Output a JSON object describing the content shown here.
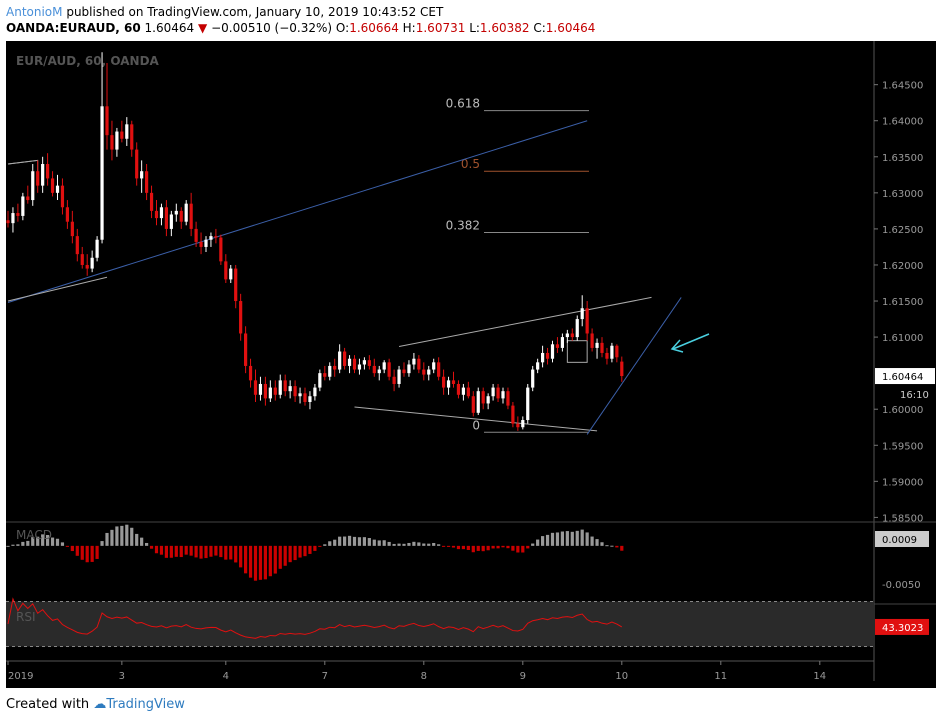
{
  "header": {
    "author": "AntonioM",
    "published_text": "published on TradingView.com, January 10, 2019 10:43:52 CET",
    "symbol": "OANDA:EURAUD, 60",
    "last": "1.60464",
    "change": "−0.00510 (−0.32%)",
    "o_label": "O:",
    "o": "1.60664",
    "h_label": "H:",
    "h": "1.60731",
    "l_label": "L:",
    "l": "1.60382",
    "c_label": "C:",
    "c": "1.60464"
  },
  "watermark": "EUR/AUD, 60, OANDA",
  "footer": {
    "prefix": "Created with",
    "brand": "TradingView"
  },
  "colors": {
    "background": "#000000",
    "bull": "#ffffff",
    "bear": "#e01010",
    "trendline_blue": "#3b5fa8",
    "fib_line": "#888888",
    "fib_05": "#a0522d",
    "macd_pos": "#999999",
    "macd_neg": "#cc0000",
    "rsi_line": "#e01010",
    "arrow": "#4ad0e0",
    "axis_text": "#9a9a9a"
  },
  "chart_data": {
    "type": "candlestick",
    "ylim": [
      1.5845,
      1.6505
    ],
    "y_ticks": [
      "1.64500",
      "1.64000",
      "1.63500",
      "1.63000",
      "1.62500",
      "1.62000",
      "1.61500",
      "1.61000",
      "1.60000",
      "1.59500",
      "1.59000",
      "1.58500"
    ],
    "price_label": "1.60464",
    "countdown_label": "16:10",
    "x_ticks": [
      "2019",
      "3",
      "4",
      "7",
      "8",
      "9",
      "10",
      "11",
      "14"
    ],
    "fib_levels": [
      {
        "label": "0.618",
        "price": 1.6414
      },
      {
        "label": "0.5",
        "price": 1.633
      },
      {
        "label": "0.382",
        "price": 1.6245
      },
      {
        "label": "0",
        "price": 1.5968
      }
    ],
    "candles": [
      [
        1.6262,
        1.6275,
        1.6252,
        1.6258
      ],
      [
        1.6258,
        1.628,
        1.6245,
        1.6272
      ],
      [
        1.6272,
        1.6285,
        1.626,
        1.6268
      ],
      [
        1.6268,
        1.63,
        1.6262,
        1.6295
      ],
      [
        1.6295,
        1.631,
        1.6285,
        1.629
      ],
      [
        1.629,
        1.634,
        1.6282,
        1.633
      ],
      [
        1.633,
        1.6345,
        1.63,
        1.631
      ],
      [
        1.631,
        1.635,
        1.63,
        1.634
      ],
      [
        1.634,
        1.6355,
        1.631,
        1.632
      ],
      [
        1.632,
        1.633,
        1.6295,
        1.63
      ],
      [
        1.63,
        1.6325,
        1.629,
        1.631
      ],
      [
        1.631,
        1.632,
        1.627,
        1.628
      ],
      [
        1.628,
        1.629,
        1.625,
        1.626
      ],
      [
        1.626,
        1.6275,
        1.623,
        1.624
      ],
      [
        1.624,
        1.625,
        1.6205,
        1.6215
      ],
      [
        1.6215,
        1.6225,
        1.6195,
        1.62
      ],
      [
        1.62,
        1.6215,
        1.6185,
        1.6195
      ],
      [
        1.6195,
        1.622,
        1.619,
        1.621
      ],
      [
        1.621,
        1.624,
        1.6205,
        1.6235
      ],
      [
        1.6235,
        1.6495,
        1.623,
        1.642
      ],
      [
        1.642,
        1.648,
        1.636,
        1.638
      ],
      [
        1.638,
        1.64,
        1.6345,
        1.636
      ],
      [
        1.636,
        1.639,
        1.635,
        1.6385
      ],
      [
        1.6385,
        1.64,
        1.637,
        1.6375
      ],
      [
        1.6375,
        1.6405,
        1.6365,
        1.6395
      ],
      [
        1.6395,
        1.64,
        1.635,
        1.636
      ],
      [
        1.636,
        1.637,
        1.631,
        1.632
      ],
      [
        1.632,
        1.6345,
        1.63,
        1.633
      ],
      [
        1.633,
        1.634,
        1.629,
        1.63
      ],
      [
        1.63,
        1.631,
        1.6265,
        1.6275
      ],
      [
        1.6275,
        1.629,
        1.6255,
        1.6265
      ],
      [
        1.6265,
        1.6285,
        1.6255,
        1.628
      ],
      [
        1.628,
        1.629,
        1.624,
        1.625
      ],
      [
        1.625,
        1.6275,
        1.624,
        1.627
      ],
      [
        1.627,
        1.6285,
        1.626,
        1.6275
      ],
      [
        1.6275,
        1.628,
        1.625,
        1.626
      ],
      [
        1.626,
        1.629,
        1.6255,
        1.6285
      ],
      [
        1.6285,
        1.63,
        1.624,
        1.625
      ],
      [
        1.625,
        1.626,
        1.6225,
        1.6232
      ],
      [
        1.6232,
        1.6245,
        1.6215,
        1.6225
      ],
      [
        1.6225,
        1.624,
        1.6218,
        1.6235
      ],
      [
        1.6235,
        1.6245,
        1.6225,
        1.624
      ],
      [
        1.624,
        1.625,
        1.623,
        1.6238
      ],
      [
        1.6238,
        1.6242,
        1.62,
        1.6205
      ],
      [
        1.6205,
        1.6215,
        1.6175,
        1.618
      ],
      [
        1.618,
        1.62,
        1.6175,
        1.6195
      ],
      [
        1.6195,
        1.62,
        1.614,
        1.615
      ],
      [
        1.615,
        1.616,
        1.6095,
        1.6105
      ],
      [
        1.6105,
        1.6115,
        1.605,
        1.606
      ],
      [
        1.606,
        1.607,
        1.603,
        1.604
      ],
      [
        1.604,
        1.6055,
        1.601,
        1.602
      ],
      [
        1.602,
        1.6045,
        1.6012,
        1.6035
      ],
      [
        1.6035,
        1.6045,
        1.6005,
        1.6015
      ],
      [
        1.6015,
        1.604,
        1.601,
        1.603
      ],
      [
        1.603,
        1.604,
        1.6012,
        1.602
      ],
      [
        1.602,
        1.6048,
        1.6015,
        1.604
      ],
      [
        1.604,
        1.6048,
        1.6018,
        1.6025
      ],
      [
        1.6025,
        1.604,
        1.6015,
        1.6032
      ],
      [
        1.6032,
        1.604,
        1.601,
        1.6018
      ],
      [
        1.6018,
        1.603,
        1.6008,
        1.6022
      ],
      [
        1.6022,
        1.603,
        1.6005,
        1.601
      ],
      [
        1.601,
        1.6025,
        1.6,
        1.6018
      ],
      [
        1.6018,
        1.6035,
        1.6012,
        1.603
      ],
      [
        1.603,
        1.6055,
        1.6025,
        1.605
      ],
      [
        1.605,
        1.606,
        1.604,
        1.6045
      ],
      [
        1.6045,
        1.6065,
        1.604,
        1.606
      ],
      [
        1.606,
        1.607,
        1.6045,
        1.6055
      ],
      [
        1.6055,
        1.609,
        1.605,
        1.608
      ],
      [
        1.608,
        1.6085,
        1.6055,
        1.606
      ],
      [
        1.606,
        1.6075,
        1.605,
        1.607
      ],
      [
        1.607,
        1.6075,
        1.605,
        1.6055
      ],
      [
        1.6055,
        1.607,
        1.6048,
        1.6062
      ],
      [
        1.6062,
        1.6072,
        1.6055,
        1.6068
      ],
      [
        1.6068,
        1.6075,
        1.6055,
        1.606
      ],
      [
        1.606,
        1.607,
        1.6045,
        1.605
      ],
      [
        1.605,
        1.606,
        1.604,
        1.6055
      ],
      [
        1.6055,
        1.6068,
        1.605,
        1.6065
      ],
      [
        1.6065,
        1.607,
        1.604,
        1.6045
      ],
      [
        1.6045,
        1.6055,
        1.6025,
        1.6035
      ],
      [
        1.6035,
        1.606,
        1.603,
        1.6055
      ],
      [
        1.6055,
        1.6065,
        1.6045,
        1.605
      ],
      [
        1.605,
        1.6068,
        1.6045,
        1.6062
      ],
      [
        1.6062,
        1.6078,
        1.6055,
        1.607
      ],
      [
        1.607,
        1.6075,
        1.605,
        1.6055
      ],
      [
        1.6055,
        1.6065,
        1.604,
        1.6048
      ],
      [
        1.6048,
        1.606,
        1.604,
        1.6055
      ],
      [
        1.6055,
        1.607,
        1.605,
        1.6065
      ],
      [
        1.6065,
        1.6072,
        1.604,
        1.6045
      ],
      [
        1.6045,
        1.6055,
        1.602,
        1.603
      ],
      [
        1.603,
        1.6045,
        1.602,
        1.604
      ],
      [
        1.604,
        1.6052,
        1.603,
        1.6035
      ],
      [
        1.6035,
        1.604,
        1.6015,
        1.602
      ],
      [
        1.602,
        1.6035,
        1.6012,
        1.603
      ],
      [
        1.603,
        1.6038,
        1.6015,
        1.6018
      ],
      [
        1.6018,
        1.6025,
        1.599,
        1.5995
      ],
      [
        1.5995,
        1.603,
        1.5992,
        1.6025
      ],
      [
        1.6025,
        1.603,
        1.6,
        1.6008
      ],
      [
        1.6008,
        1.6022,
        1.6,
        1.6018
      ],
      [
        1.6018,
        1.6035,
        1.6012,
        1.603
      ],
      [
        1.603,
        1.6035,
        1.601,
        1.6015
      ],
      [
        1.6015,
        1.603,
        1.6008,
        1.6025
      ],
      [
        1.6025,
        1.603,
        1.6,
        1.6005
      ],
      [
        1.6005,
        1.601,
        1.5975,
        1.598
      ],
      [
        1.598,
        1.599,
        1.597,
        1.5975
      ],
      [
        1.5975,
        1.599,
        1.5972,
        1.5985
      ],
      [
        1.5985,
        1.6035,
        1.598,
        1.603
      ],
      [
        1.603,
        1.606,
        1.6025,
        1.6055
      ],
      [
        1.6055,
        1.607,
        1.605,
        1.6065
      ],
      [
        1.6065,
        1.6088,
        1.6058,
        1.6078
      ],
      [
        1.6078,
        1.6085,
        1.6062,
        1.607
      ],
      [
        1.607,
        1.6095,
        1.6065,
        1.609
      ],
      [
        1.609,
        1.61,
        1.6078,
        1.6085
      ],
      [
        1.6085,
        1.6105,
        1.608,
        1.61
      ],
      [
        1.61,
        1.611,
        1.6092,
        1.6105
      ],
      [
        1.6105,
        1.6112,
        1.6095,
        1.61
      ],
      [
        1.61,
        1.613,
        1.6095,
        1.6125
      ],
      [
        1.6125,
        1.6158,
        1.6115,
        1.614
      ],
      [
        1.614,
        1.615,
        1.6095,
        1.6105
      ],
      [
        1.6105,
        1.6112,
        1.608,
        1.6085
      ],
      [
        1.6085,
        1.6098,
        1.607,
        1.6092
      ],
      [
        1.6092,
        1.61,
        1.6072,
        1.6078
      ],
      [
        1.6078,
        1.6085,
        1.6062,
        1.607
      ],
      [
        1.607,
        1.6092,
        1.6065,
        1.6088
      ],
      [
        1.6088,
        1.609,
        1.6065,
        1.6072
      ],
      [
        1.6066,
        1.6073,
        1.6038,
        1.6046
      ]
    ],
    "drawings": [
      {
        "type": "trendline",
        "color": "blue",
        "from": [
          0,
          1.6148
        ],
        "to": [
          117,
          1.64
        ]
      },
      {
        "type": "segment",
        "from": [
          0,
          1.634
        ],
        "to": [
          6,
          1.6345
        ]
      },
      {
        "type": "segment",
        "from": [
          0,
          1.615
        ],
        "to": [
          20,
          1.6183
        ]
      },
      {
        "type": "segment",
        "from": [
          70,
          1.6003
        ],
        "to": [
          119,
          1.597
        ]
      },
      {
        "type": "segment",
        "from": [
          79,
          1.6087
        ],
        "to": [
          130,
          1.6155
        ]
      },
      {
        "type": "segment",
        "from": [
          117,
          1.5965
        ],
        "to": [
          136,
          1.6155
        ]
      }
    ],
    "macd": {
      "label": "MACD",
      "value_label": "0.0009",
      "y_tick": "-0.0050",
      "ylim": [
        -0.0075,
        0.003
      ]
    },
    "rsi": {
      "label": "RSI",
      "value_label": "43.3023",
      "ylim": [
        0,
        100
      ],
      "bands": [
        30,
        70
      ]
    }
  }
}
